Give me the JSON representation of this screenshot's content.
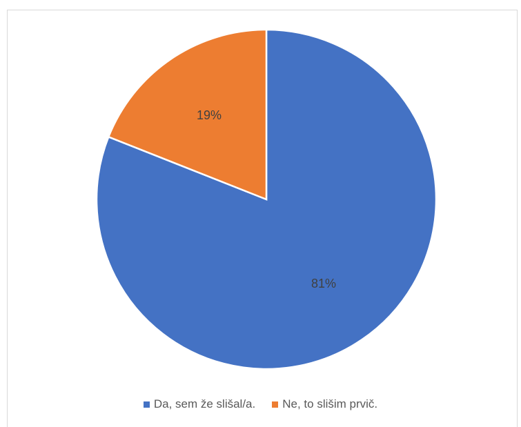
{
  "chart_data": {
    "type": "pie",
    "categories": [
      "Da, sem že slišal/a.",
      "Ne, to slišim prvič."
    ],
    "values": [
      81,
      19
    ],
    "labels": [
      "81%",
      "19%"
    ],
    "colors": [
      "#4472c4",
      "#ed7d31"
    ],
    "start_angle_deg": 0,
    "direction": "clockwise",
    "legend_position": "bottom"
  }
}
